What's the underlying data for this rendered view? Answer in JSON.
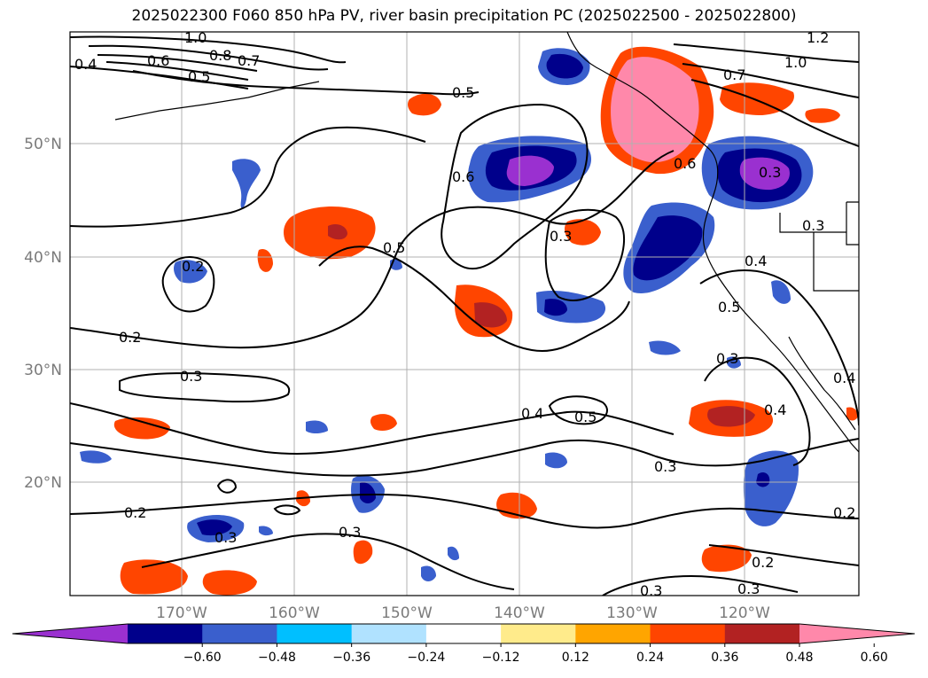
{
  "title": "2025022300 F060 850 hPa PV, river basin precipitation PC (2025022500 - 2025022800)",
  "lon_labels": [
    "170°W",
    "160°W",
    "150°W",
    "140°W",
    "130°W",
    "120°W"
  ],
  "lat_labels": [
    "50°N",
    "40°N",
    "30°N",
    "20°N"
  ],
  "contour_labels": [
    "1.0",
    "0.8",
    "0.7",
    "0.6",
    "0.5",
    "0.4",
    "1.2",
    "1.0",
    "0.7",
    "0.5",
    "0.6",
    "0.6",
    "0.5",
    "0.3",
    "0.2",
    "0.2",
    "0.3",
    "0.3",
    "0.2",
    "0.3",
    "0.4",
    "0.5",
    "0.3",
    "0.3",
    "0.4",
    "0.5",
    "0.3",
    "0.4",
    "0.4",
    "0.3",
    "0.2",
    "0.2",
    "0.3",
    "0.3"
  ],
  "colorbar": {
    "ticks": [
      "−0.60",
      "−0.48",
      "−0.36",
      "−0.24",
      "−0.12",
      "0.12",
      "0.24",
      "0.36",
      "0.48",
      "0.60"
    ],
    "colors": [
      "#9a30d0",
      "#00008b",
      "#3a5fcd",
      "#00bfff",
      "#b0e2ff",
      "#ffffff",
      "#ffeb8b",
      "#ffa500",
      "#ff4500",
      "#b22222",
      "#ff88aa"
    ]
  },
  "chart_data": {
    "type": "map",
    "title": "2025022300 F060 850 hPa PV, river basin precipitation PC (2025022500 - 2025022800)",
    "projection": "PlateCarree",
    "extent_lon": [
      -180,
      -110
    ],
    "extent_lat": [
      10,
      60
    ],
    "xticks": [
      "170°W",
      "160°W",
      "150°W",
      "140°W",
      "130°W",
      "120°W"
    ],
    "yticks": [
      "50°N",
      "40°N",
      "30°N",
      "20°N"
    ],
    "grid": true,
    "contour_field": "850 hPa PV",
    "contour_levels_labeled": [
      0.2,
      0.3,
      0.4,
      0.5,
      0.6,
      0.7,
      0.8,
      1.0,
      1.2
    ],
    "shading_field": "river basin precipitation PC",
    "shading_levels": [
      -0.6,
      -0.48,
      -0.36,
      -0.24,
      -0.12,
      0.12,
      0.24,
      0.36,
      0.48,
      0.6
    ],
    "colorbar_extend": "both"
  }
}
